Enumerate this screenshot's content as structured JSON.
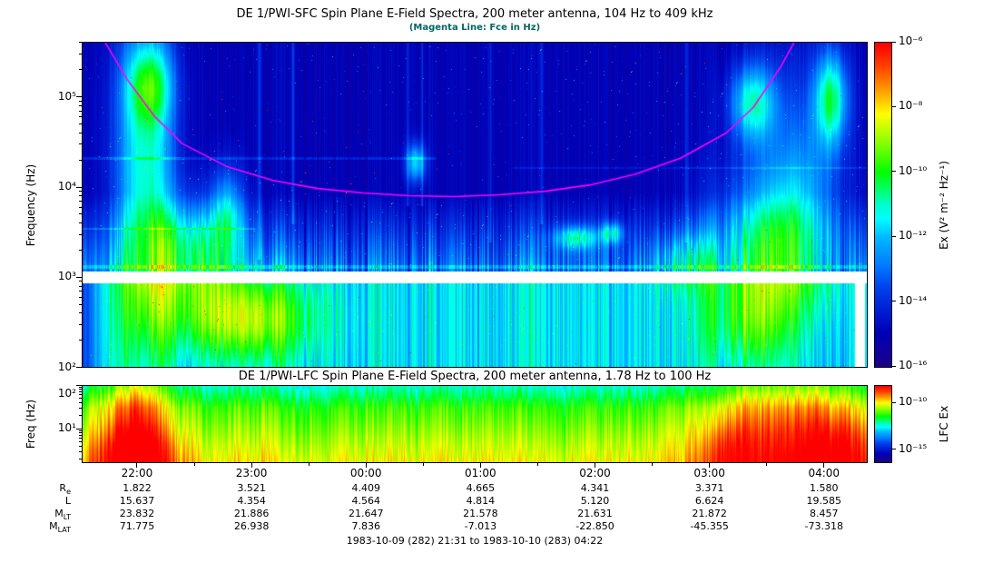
{
  "colors": {
    "magenta_line": "#ff00ff",
    "subtitle": "#006666",
    "background": "#ffffff"
  },
  "sfc": {
    "title": "DE 1/PWI-SFC  Spin Plane E-Field Spectra, 200 meter antenna, 104 Hz to 409 kHz",
    "subtitle": "(Magenta Line: Fce in Hz)",
    "ylabel": "Frequency (Hz)",
    "colorbar_label": "Ex (V² m⁻² Hz⁻¹)"
  },
  "lfc": {
    "title": "DE 1/PWI-LFC  Spin Plane E-Field Spectra, 200 meter antenna, 1.78 Hz to 100 Hz",
    "ylabel": "Freq (Hz)",
    "colorbar_label": "LFC Ex"
  },
  "footer": "1983-10-09 (282) 21:31 to 1983-10-10 (283) 04:22",
  "ephemeris": {
    "rows": [
      {
        "label": {
          "main": "R",
          "sub": "e"
        },
        "values": [
          "1.822",
          "3.521",
          "4.409",
          "4.665",
          "4.341",
          "3.371",
          "1.580"
        ]
      },
      {
        "label": {
          "main": "L",
          "sub": ""
        },
        "values": [
          "15.637",
          "4.354",
          "4.564",
          "4.814",
          "5.120",
          "6.624",
          "19.585"
        ]
      },
      {
        "label": {
          "main": "M",
          "sub": "LT"
        },
        "values": [
          "23.832",
          "21.886",
          "21.647",
          "21.578",
          "21.631",
          "21.872",
          "8.457"
        ]
      },
      {
        "label": {
          "main": "M",
          "sub": "LAT"
        },
        "values": [
          "71.775",
          "26.938",
          "7.836",
          "-7.013",
          "-22.850",
          "-45.355",
          "-73.318"
        ]
      }
    ]
  },
  "chart_data": [
    {
      "type": "heatmap",
      "id": "sfc",
      "title": "DE 1/PWI-SFC  Spin Plane E-Field Spectra, 200 meter antenna, 104 Hz to 409 kHz",
      "subtitle": "(Magenta Line: Fce in Hz)",
      "xlabel": "",
      "ylabel": "Frequency (Hz)",
      "x_start_hour": 21.5167,
      "x_end_hour": 28.3667,
      "x_tick_hours": [
        22,
        23,
        24,
        25,
        26,
        27,
        28
      ],
      "x_tick_labels": [
        "22:00",
        "23:00",
        "00:00",
        "01:00",
        "02:00",
        "03:00",
        "04:00"
      ],
      "y_log_range": [
        2.017,
        5.612
      ],
      "y_tick_logs": [
        5,
        4,
        3,
        2
      ],
      "y_tick_labels": [
        "10⁵",
        "10⁴",
        "10³",
        "10²"
      ],
      "z_label": "Ex (V² m⁻² Hz⁻¹)",
      "z_log_range": [
        -16,
        -6
      ],
      "z_tick_logs": [
        -6,
        -8,
        -10,
        -12,
        -14,
        -16
      ],
      "z_tick_labels": [
        "10⁻⁶",
        "10⁻⁸",
        "10⁻¹⁰",
        "10⁻¹²",
        "10⁻¹⁴",
        "10⁻¹⁶"
      ],
      "fce_line_points": [
        [
          0.029,
          5.61
        ],
        [
          0.058,
          5.19
        ],
        [
          0.092,
          4.79
        ],
        [
          0.127,
          4.49
        ],
        [
          0.185,
          4.23
        ],
        [
          0.243,
          4.08
        ],
        [
          0.3,
          3.99
        ],
        [
          0.358,
          3.94
        ],
        [
          0.416,
          3.91
        ],
        [
          0.474,
          3.9
        ],
        [
          0.532,
          3.92
        ],
        [
          0.59,
          3.96
        ],
        [
          0.647,
          4.03
        ],
        [
          0.705,
          4.15
        ],
        [
          0.763,
          4.33
        ],
        [
          0.821,
          4.61
        ],
        [
          0.855,
          4.89
        ],
        [
          0.89,
          5.34
        ],
        [
          0.907,
          5.61
        ]
      ],
      "texture": {
        "data_gap_log_band": [
          2.94,
          3.07
        ],
        "gap_col": [
          0.986,
          0.998
        ],
        "below_gap_base": 0.44,
        "left_edge_dim": 0.22,
        "blobs": [
          {
            "cx": 0.08,
            "cy": 4.2,
            "sx": 0.038,
            "sy": 1.8,
            "amp": 0.4
          },
          {
            "cx": 0.085,
            "cy": 5.15,
            "sx": 0.03,
            "sy": 0.45,
            "amp": 0.28
          },
          {
            "cx": 0.14,
            "cy": 3.35,
            "sx": 0.055,
            "sy": 0.55,
            "amp": 0.3
          },
          {
            "cx": 0.185,
            "cy": 3.75,
            "sx": 0.022,
            "sy": 0.5,
            "amp": 0.26
          },
          {
            "cx": 0.2,
            "cy": 2.55,
            "sx": 0.09,
            "sy": 0.45,
            "amp": 0.3
          },
          {
            "cx": 0.85,
            "cy": 2.5,
            "sx": 0.06,
            "sy": 0.5,
            "amp": 0.16
          },
          {
            "cx": 0.88,
            "cy": 3.5,
            "sx": 0.075,
            "sy": 0.8,
            "amp": 0.32
          },
          {
            "cx": 0.92,
            "cy": 4.3,
            "sx": 0.05,
            "sy": 1.2,
            "amp": 0.16
          },
          {
            "cx": 0.855,
            "cy": 4.95,
            "sx": 0.03,
            "sy": 0.45,
            "amp": 0.38
          },
          {
            "cx": 0.955,
            "cy": 5.0,
            "sx": 0.022,
            "sy": 0.55,
            "amp": 0.42
          },
          {
            "cx": 0.63,
            "cy": 3.45,
            "sx": 0.028,
            "sy": 0.13,
            "amp": 0.3
          },
          {
            "cx": 0.675,
            "cy": 3.5,
            "sx": 0.014,
            "sy": 0.12,
            "amp": 0.28
          },
          {
            "cx": 0.425,
            "cy": 4.28,
            "sx": 0.013,
            "sy": 0.22,
            "amp": 0.32
          },
          {
            "cx": 0.77,
            "cy": 3.2,
            "sx": 0.04,
            "sy": 0.3,
            "amp": 0.16
          }
        ],
        "h_lines": [
          {
            "log": 3.12,
            "w": 0.02,
            "x0": 0.0,
            "x1": 1.0,
            "amp": 0.1
          },
          {
            "log": 4.33,
            "w": 0.012,
            "x0": 0.0,
            "x1": 0.45,
            "amp": 0.08
          },
          {
            "log": 4.22,
            "w": 0.01,
            "x0": 0.55,
            "x1": 1.0,
            "amp": 0.06
          },
          {
            "log": 3.55,
            "w": 0.012,
            "x0": 0.0,
            "x1": 0.22,
            "amp": 0.08
          }
        ],
        "streaks": [
          {
            "x": 0.225,
            "amp": 0.13,
            "from": 3.2
          },
          {
            "x": 0.268,
            "amp": 0.11,
            "from": 3.6
          },
          {
            "x": 0.415,
            "amp": 0.12,
            "from": 3.8
          },
          {
            "x": 0.433,
            "amp": 0.1,
            "from": 3.8
          },
          {
            "x": 0.52,
            "amp": 0.1,
            "from": 3.4
          },
          {
            "x": 0.585,
            "amp": 0.09,
            "from": 3.6
          },
          {
            "x": 0.77,
            "amp": 0.11,
            "from": 3.4
          }
        ]
      }
    },
    {
      "type": "heatmap",
      "id": "lfc",
      "title": "DE 1/PWI-LFC  Spin Plane E-Field Spectra, 200 meter antenna, 1.78 Hz to 100 Hz",
      "xlabel": "",
      "ylabel": "Freq (Hz)",
      "x_start_hour": 21.5167,
      "x_end_hour": 28.3667,
      "x_tick_hours": [
        22,
        23,
        24,
        25,
        26,
        27,
        28
      ],
      "x_tick_labels": [
        "22:00",
        "23:00",
        "00:00",
        "01:00",
        "02:00",
        "03:00",
        "04:00"
      ],
      "y_log_range": [
        0.25,
        2.0
      ],
      "y_tick_logs": [
        2,
        1
      ],
      "y_tick_labels": [
        "10²",
        "10¹"
      ],
      "z_label": "LFC Ex",
      "z_log_range": [
        -16.3,
        -8.1
      ],
      "z_tick_logs": [
        -10,
        -15
      ],
      "z_tick_labels": [
        "10⁻¹⁰",
        "10⁻¹⁵"
      ],
      "texture": {
        "base_top": 0.58,
        "base_bottom_boost": 0.2,
        "stripe_amp": 0.1,
        "top_dim": 0.08,
        "blobs": [
          {
            "cx": 0.065,
            "cy": 0.8,
            "sx": 0.045,
            "sy": 2.2,
            "amp": 0.34
          },
          {
            "cx": 0.065,
            "cy": 0.35,
            "sx": 0.05,
            "sy": 0.55,
            "amp": 0.12
          },
          {
            "cx": 0.9,
            "cy": 0.7,
            "sx": 0.11,
            "sy": 2.2,
            "amp": 0.26
          },
          {
            "cx": 0.97,
            "cy": 0.45,
            "sx": 0.05,
            "sy": 0.9,
            "amp": 0.12
          },
          {
            "cx": 0.82,
            "cy": 0.4,
            "sx": 0.03,
            "sy": 0.8,
            "amp": 0.1
          }
        ]
      }
    }
  ]
}
